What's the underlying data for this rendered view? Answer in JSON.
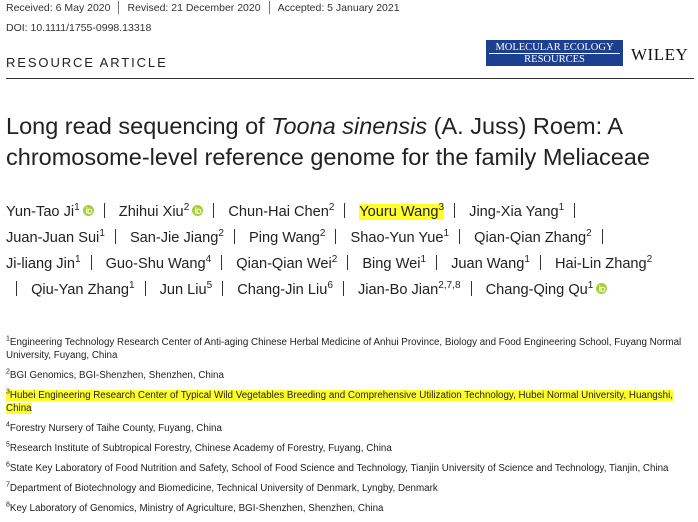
{
  "header": {
    "received": "Received: 6 May 2020",
    "revised": "Revised: 21 December 2020",
    "accepted": "Accepted: 5 January 2021",
    "doi": "DOI: 10.1111/1755-0998.13318",
    "article_type": "RESOURCE ARTICLE",
    "journal": [
      "MOLECULAR ECOLOGY",
      "RESOURCES"
    ],
    "publisher": "WILEY"
  },
  "title": [
    "Long read sequencing of ",
    "Toona sinensis",
    " (A. Juss) Roem: A chromosome-level reference genome for the family Meliaceae"
  ],
  "authors": [
    {
      "name": "Yun-Tao Ji",
      "sup": "1",
      "orcid": true
    },
    {
      "name": "Zhihui Xiu",
      "sup": "2",
      "orcid": true
    },
    {
      "name": "Chun-Hai Chen",
      "sup": "2"
    },
    {
      "name": "Youru Wang",
      "sup": "3",
      "highlighted": true
    },
    {
      "name": "Jing-Xia Yang",
      "sup": "1"
    },
    {
      "name": "Juan-Juan Sui",
      "sup": "1"
    },
    {
      "name": "San-Jie Jiang",
      "sup": "2"
    },
    {
      "name": "Ping Wang",
      "sup": "2"
    },
    {
      "name": "Shao-Yun Yue",
      "sup": "1"
    },
    {
      "name": "Qian-Qian Zhang",
      "sup": "2"
    },
    {
      "name": "Ji-liang Jin",
      "sup": "1"
    },
    {
      "name": "Guo-Shu Wang",
      "sup": "4"
    },
    {
      "name": "Qian-Qian Wei",
      "sup": "2"
    },
    {
      "name": "Bing Wei",
      "sup": "1"
    },
    {
      "name": "Juan Wang",
      "sup": "1"
    },
    {
      "name": "Hai-Lin Zhang",
      "sup": "2"
    },
    {
      "name": "Qiu-Yan Zhang",
      "sup": "1"
    },
    {
      "name": "Jun Liu",
      "sup": "5"
    },
    {
      "name": "Chang-Jin Liu",
      "sup": "6"
    },
    {
      "name": "Jian-Bo Jian",
      "sup": "2,7,8"
    },
    {
      "name": "Chang-Qing Qu",
      "sup": "1",
      "orcid": true
    }
  ],
  "affiliations": [
    {
      "num": "1",
      "text": "Engineering Technology Research Center of Anti-aging Chinese Herbal Medicine of Anhui Province, Biology and Food Engineering School, Fuyang Normal University, Fuyang, China"
    },
    {
      "num": "2",
      "text": "BGI Genomics, BGI-Shenzhen, Shenzhen, China"
    },
    {
      "num": "3",
      "text": "Hubei Engineering Research Center of Typical Wild Vegetables Breeding and Comprehensive Utilization Technology, Hubei Normal University, Huangshi, China",
      "highlighted": true
    },
    {
      "num": "4",
      "text": "Forestry Nursery of Taihe County, Fuyang, China"
    },
    {
      "num": "5",
      "text": "Research Institute of Subtropical Forestry, Chinese Academy of Forestry, Fuyang, China"
    },
    {
      "num": "6",
      "text": "State Key Laboratory of Food Nutrition and Safety, School of Food Science and Technology, Tianjin University of Science and Technology, Tianjin, China"
    },
    {
      "num": "7",
      "text": "Department of Biotechnology and Biomedicine, Technical University of Denmark, Lyngby, Denmark"
    },
    {
      "num": "8",
      "text": "Key Laboratory of Genomics, Ministry of Agriculture, BGI-Shenzhen, Shenzhen, China"
    }
  ]
}
